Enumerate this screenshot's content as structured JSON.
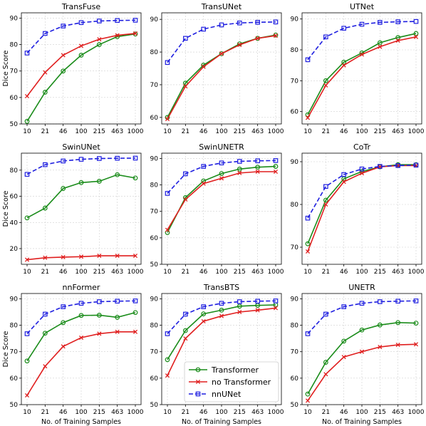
{
  "chart_data": {
    "type": "line",
    "categories": [
      "10",
      "21",
      "46",
      "100",
      "215",
      "463",
      "1000"
    ],
    "xlabel": "No. of Training Samples",
    "ylabel": "Dice Score",
    "grid": true,
    "legend": {
      "placement": "inside panel TransBTS, lower right",
      "entries": [
        "Transformer",
        "no Transformer",
        "nnUNet"
      ]
    },
    "colors": {
      "Transformer": "#1a8c1a",
      "no Transformer": "#e01f1f",
      "nnUNet": "#1f1fe0"
    },
    "panels": [
      {
        "title": "TransFuse",
        "ylim": [
          50,
          92
        ],
        "yticks": [
          50,
          60,
          70,
          80,
          90
        ],
        "series": [
          {
            "name": "Transformer",
            "values": [
              51,
              62,
              70,
              76,
              80,
              83,
              84
            ]
          },
          {
            "name": "no Transformer",
            "values": [
              60.5,
              69.5,
              76,
              79.5,
              82,
              83.5,
              84.2
            ]
          },
          {
            "name": "nnUNet",
            "values": [
              76.8,
              84.2,
              87,
              88.3,
              88.9,
              89.1,
              89.2
            ]
          }
        ]
      },
      {
        "title": "TransUNet",
        "ylim": [
          58,
          92
        ],
        "yticks": [
          60,
          70,
          80,
          90
        ],
        "series": [
          {
            "name": "Transformer",
            "values": [
              60,
              70.5,
              76,
              79.5,
              82.5,
              84.2,
              85.2
            ]
          },
          {
            "name": "no Transformer",
            "values": [
              59.5,
              69.5,
              75.5,
              79.5,
              82.2,
              84.2,
              85
            ]
          },
          {
            "name": "nnUNet",
            "values": [
              76.8,
              84.2,
              87,
              88.3,
              88.9,
              89.1,
              89.2
            ]
          }
        ]
      },
      {
        "title": "UTNet",
        "ylim": [
          56,
          92
        ],
        "yticks": [
          60,
          70,
          80,
          90
        ],
        "series": [
          {
            "name": "Transformer",
            "values": [
              59,
              70,
              76,
              79,
              82.3,
              84,
              85.3
            ]
          },
          {
            "name": "no Transformer",
            "values": [
              58,
              68.5,
              75,
              78.5,
              81,
              83,
              84.2
            ]
          },
          {
            "name": "nnUNet",
            "values": [
              76.8,
              84.2,
              87,
              88.3,
              88.9,
              89.1,
              89.2
            ]
          }
        ]
      },
      {
        "title": "SwinUNet",
        "ylim": [
          8,
          93
        ],
        "yticks": [
          20,
          40,
          60,
          80
        ],
        "series": [
          {
            "name": "Transformer",
            "values": [
              43.5,
              51,
              66,
              70.5,
              71.5,
              76.5,
              74
            ]
          },
          {
            "name": "no Transformer",
            "values": [
              11.5,
              13,
              13.5,
              13.8,
              14.5,
              14.5,
              14.5
            ]
          },
          {
            "name": "nnUNet",
            "values": [
              76.8,
              84.2,
              87,
              88.3,
              88.9,
              89.1,
              89.2
            ]
          }
        ]
      },
      {
        "title": "SwinUNETR",
        "ylim": [
          50,
          92
        ],
        "yticks": [
          50,
          60,
          70,
          80,
          90
        ],
        "series": [
          {
            "name": "Transformer",
            "values": [
              62,
              75.2,
              81.5,
              84.3,
              86,
              86.7,
              87
            ]
          },
          {
            "name": "no Transformer",
            "values": [
              63,
              74.5,
              80.5,
              82.5,
              84.5,
              85,
              85
            ]
          },
          {
            "name": "nnUNet",
            "values": [
              76.8,
              84.2,
              87,
              88.3,
              88.9,
              89.1,
              89.2
            ]
          }
        ]
      },
      {
        "title": "CoTr",
        "ylim": [
          66,
          92
        ],
        "yticks": [
          70,
          80,
          90
        ],
        "series": [
          {
            "name": "Transformer",
            "values": [
              70.8,
              81,
              86,
              87.7,
              88.8,
              89.3,
              89.3
            ]
          },
          {
            "name": "no Transformer",
            "values": [
              69,
              80,
              85.3,
              87.3,
              88.8,
              89.1,
              89.1
            ]
          },
          {
            "name": "nnUNet",
            "values": [
              76.8,
              84.2,
              87,
              88.3,
              88.9,
              89.1,
              89.2
            ]
          }
        ]
      },
      {
        "title": "nnFormer",
        "ylim": [
          50,
          92
        ],
        "yticks": [
          50,
          60,
          70,
          80,
          90
        ],
        "series": [
          {
            "name": "Transformer",
            "values": [
              66.5,
              77,
              81,
              83.7,
              83.8,
              83,
              84.8
            ]
          },
          {
            "name": "no Transformer",
            "values": [
              53.5,
              64.5,
              72,
              75.3,
              76.8,
              77.5,
              77.5
            ]
          },
          {
            "name": "nnUNet",
            "values": [
              76.8,
              84.2,
              87,
              88.3,
              88.9,
              89.1,
              89.2
            ]
          }
        ]
      },
      {
        "title": "TransBTS",
        "ylim": [
          50,
          92
        ],
        "yticks": [
          50,
          60,
          70,
          80,
          90
        ],
        "series": [
          {
            "name": "Transformer",
            "values": [
              67,
              78,
              84.3,
              85.7,
              87.2,
              87.5,
              87.7
            ]
          },
          {
            "name": "no Transformer",
            "values": [
              61,
              75,
              81.5,
              83.5,
              85,
              85.7,
              86.5
            ]
          },
          {
            "name": "nnUNet",
            "values": [
              76.8,
              84.2,
              87,
              88.3,
              88.9,
              89.1,
              89.2
            ]
          }
        ]
      },
      {
        "title": "UNETR",
        "ylim": [
          50,
          92
        ],
        "yticks": [
          50,
          60,
          70,
          80,
          90
        ],
        "series": [
          {
            "name": "Transformer",
            "values": [
              54,
              66,
              74,
              78.2,
              80.1,
              81,
              80.8
            ]
          },
          {
            "name": "no Transformer",
            "values": [
              51.5,
              61.5,
              68,
              70,
              71.8,
              72.6,
              72.8
            ]
          },
          {
            "name": "nnUNet",
            "values": [
              76.8,
              84.2,
              87,
              88.3,
              88.9,
              89.1,
              89.2
            ]
          }
        ]
      }
    ]
  }
}
